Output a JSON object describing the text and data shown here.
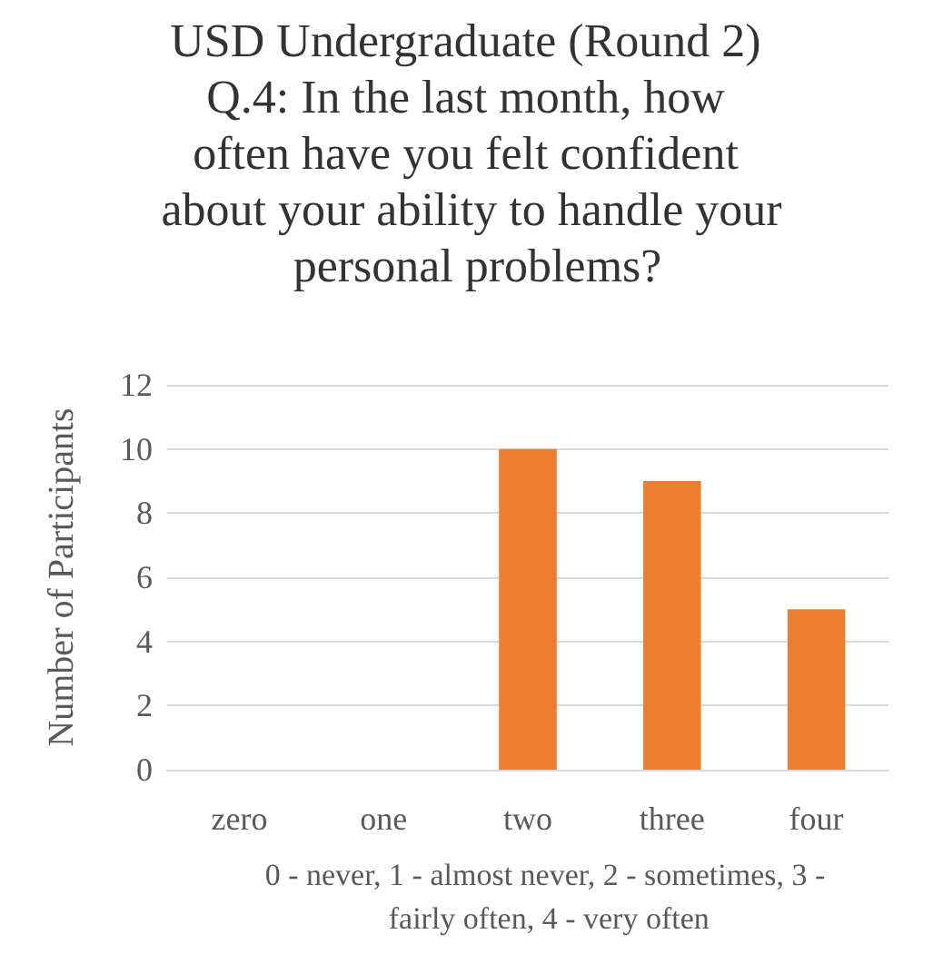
{
  "chart_data": {
    "type": "bar",
    "title": "USD Undergraduate (Round 2) Q.4: In the last month, how often have you felt confident about your ability to handle your personal problems?",
    "xlabel": "0 - never, 1 - almost never, 2 - sometimes, 3 - fairly often, 4 - very often",
    "ylabel": "Number of Participants",
    "categories": [
      "zero",
      "one",
      "two",
      "three",
      "four"
    ],
    "values": [
      0,
      0,
      10,
      9,
      5
    ],
    "color": "#ed7d31",
    "ylim": [
      0,
      12
    ],
    "yticks": [
      0,
      2,
      4,
      6,
      8,
      10,
      12
    ],
    "grid": "y"
  }
}
